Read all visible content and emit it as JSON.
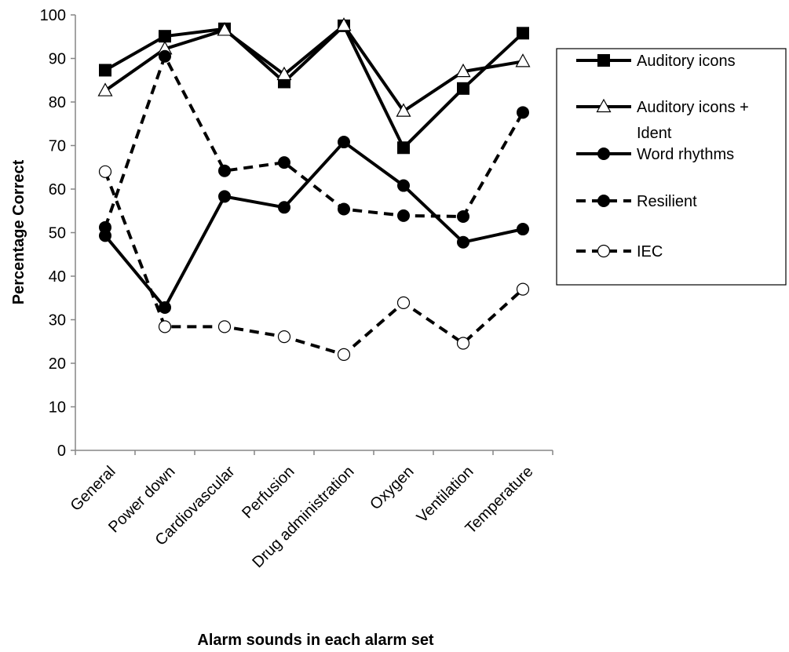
{
  "chart_data": {
    "type": "line",
    "xlabel": "Alarm sounds in each alarm set",
    "ylabel": "Percentage Correct",
    "ylim": [
      0,
      100
    ],
    "yticks": [
      0,
      10,
      20,
      30,
      40,
      50,
      60,
      70,
      80,
      90,
      100
    ],
    "grid": false,
    "legend_position": "right",
    "categories": [
      "General",
      "Power down",
      "Cardiovascular",
      "Perfusion",
      "Drug administration",
      "Oxygen",
      "Ventilation",
      "Temperature"
    ],
    "series": [
      {
        "name": "Auditory icons",
        "marker": "square-filled",
        "dash": "solid",
        "values": [
          87.3,
          95.1,
          96.8,
          84.6,
          97.5,
          69.5,
          83.1,
          95.8
        ]
      },
      {
        "name_lines": [
          "Auditory icons +",
          "Ident"
        ],
        "name": "Auditory icons + Ident",
        "marker": "triangle-open",
        "dash": "solid",
        "values": [
          82.6,
          92.2,
          96.5,
          86.3,
          97.6,
          77.9,
          87.0,
          89.3
        ]
      },
      {
        "name": "Word rhythms",
        "marker": "circle-filled",
        "dash": "solid",
        "values": [
          49.3,
          32.8,
          58.3,
          55.8,
          70.8,
          60.8,
          47.8,
          50.8
        ]
      },
      {
        "name": "Resilient",
        "marker": "circle-filled",
        "dash": "dashed",
        "values": [
          51.2,
          90.5,
          64.2,
          66.1,
          55.4,
          53.9,
          53.7,
          77.6
        ]
      },
      {
        "name": "IEC",
        "marker": "circle-open",
        "dash": "dashed",
        "values": [
          64.0,
          28.4,
          28.4,
          26.1,
          22.0,
          33.9,
          24.6,
          37.0
        ]
      }
    ]
  }
}
